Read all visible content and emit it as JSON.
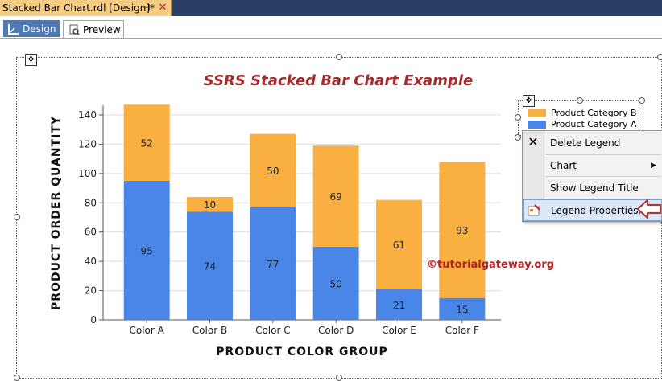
{
  "document_tab": {
    "title": "Stacked Bar Chart.rdl [Design]*",
    "pin_icon": "pin-icon",
    "close_icon": "close-icon"
  },
  "view_tabs": [
    {
      "label": "Design",
      "icon": "design-ruler-icon",
      "active": true
    },
    {
      "label": "Preview",
      "icon": "preview-icon",
      "active": false
    }
  ],
  "chart": {
    "title": "SSRS Stacked Bar Chart Example",
    "watermark": "©tutorialgateway.org"
  },
  "chart_data": {
    "type": "bar",
    "stacked": true,
    "title": "SSRS Stacked Bar Chart Example",
    "xlabel": "PRODUCT COLOR GROUP",
    "ylabel": "PRODUCT ORDER QUANTITY",
    "categories": [
      "Color A",
      "Color B",
      "Color C",
      "Color D",
      "Color E",
      "Color F"
    ],
    "series": [
      {
        "name": "Product Category A",
        "color": "#4a86e8",
        "values": [
          95,
          74,
          77,
          50,
          21,
          15
        ]
      },
      {
        "name": "Product Category B",
        "color": "#f9b040",
        "values": [
          52,
          10,
          50,
          69,
          61,
          93
        ]
      }
    ],
    "ylim": [
      0,
      140
    ],
    "yticks": [
      "0",
      "20",
      "40",
      "60",
      "80",
      "100",
      "120",
      "140"
    ],
    "grid": true,
    "legend_position": "top-right"
  },
  "legend": {
    "items": [
      {
        "label": "Product Category B",
        "color": "#f9b040"
      },
      {
        "label": "Product Category A",
        "color": "#4a86e8"
      }
    ]
  },
  "context_menu": {
    "items": [
      {
        "label": "Delete Legend",
        "icon": "delete-x-icon"
      },
      {
        "label": "Chart",
        "has_submenu": true
      },
      {
        "label": "Show Legend Title"
      },
      {
        "label": "Legend Properties...",
        "icon": "legend-properties-icon",
        "highlighted": true
      }
    ]
  },
  "colors": {
    "accent_title": "#a32b2b",
    "callout_arrow": "#a33b3b",
    "tab_active": "#4e79b4",
    "doc_tab": "#f5cc84"
  }
}
